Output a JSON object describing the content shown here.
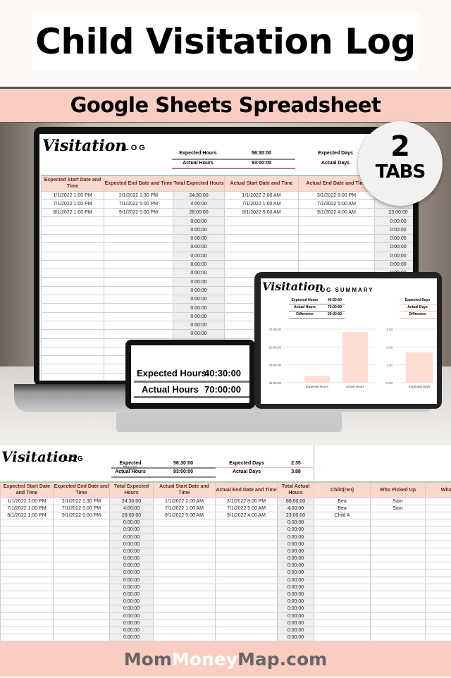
{
  "title": "Child Visitation Log",
  "subtitle": "Google Sheets Spreadsheet",
  "badge": {
    "number": "2",
    "label": "TABS"
  },
  "footer": {
    "part1": "Mom",
    "part2": "Money",
    "part3": "Map.com"
  },
  "colors": {
    "band": "#f9cdc2",
    "header_fill": "#fbd9cf",
    "bar": "#fddcd3"
  },
  "log": {
    "title_script": "Visitation",
    "title_caps": "LOG",
    "summary": {
      "expected_hours_label": "Expected Hours",
      "expected_hours": "56:30:00",
      "actual_hours_label": "Actual Hours",
      "actual_hours": "93:00:00",
      "expected_days_label": "Expected Days",
      "expected_days": "2.35",
      "actual_days_label": "Actual Days",
      "actual_days": "3.88"
    },
    "columns": [
      "Expected Start Date and Time",
      "Expected End Date and Time",
      "Total Expected Hours",
      "Actual Start Date and Time",
      "Actual End Date and Time",
      "Total Actual Hours",
      "Child(ren)",
      "Who Picked Up",
      "Who Drop"
    ],
    "rows": [
      [
        "1/1/2022 1:00 PM",
        "2/1/2022 1:30 PM",
        "24:30:00",
        "1/1/2022 2:00 AM",
        "3/1/2022 8:00 PM",
        "66:00:00",
        "Bea",
        "Sam",
        "S"
      ],
      [
        "7/1/2022 1:00 PM",
        "7/1/2022 5:00 PM",
        "4:00:00",
        "7/1/2022 1:00 AM",
        "7/1/2022 5:00 AM",
        "4:00:00",
        "Bea",
        "Sam",
        "S"
      ],
      [
        "8/1/2022 1:00 PM",
        "9/1/2022 5:00 PM",
        "28:00:00",
        "8/1/2022 5:00 AM",
        "9/1/2022 4:00 AM",
        "23:00:00",
        "Child A",
        "",
        ""
      ]
    ],
    "empty_value": "0:00:00"
  },
  "phone": {
    "expected_hours_label": "Expected Hours",
    "expected_hours": "40:30:00",
    "actual_hours_label": "Actual Hours",
    "actual_hours": "70:00:00"
  },
  "summary_tab": {
    "title_script": "Visitation",
    "title_caps": "LOG SUMMARY",
    "table": [
      [
        "Expected Hours",
        "40:30:00"
      ],
      [
        "Actual Hours",
        "70:00:00"
      ],
      [
        "Difference",
        "29:30:00"
      ]
    ],
    "days_table": [
      "Expected Days",
      "Actual Days",
      "Difference"
    ]
  },
  "chart_data": [
    {
      "type": "bar",
      "categories": [
        "Expected Hours",
        "Actual Hours"
      ],
      "values": [
        40.5,
        70
      ],
      "ylim": [
        36,
        72
      ],
      "yticks": [
        "36:00:00",
        "48:00:00",
        "60:00:00",
        "72:00:00"
      ],
      "grid": true
    },
    {
      "type": "bar",
      "categories": [
        "Expected Days"
      ],
      "values": [
        1.7
      ],
      "ylim": [
        0,
        3
      ],
      "yticks": [
        "0.00",
        "1.00",
        "2.00",
        "3.00"
      ],
      "grid": true
    }
  ]
}
